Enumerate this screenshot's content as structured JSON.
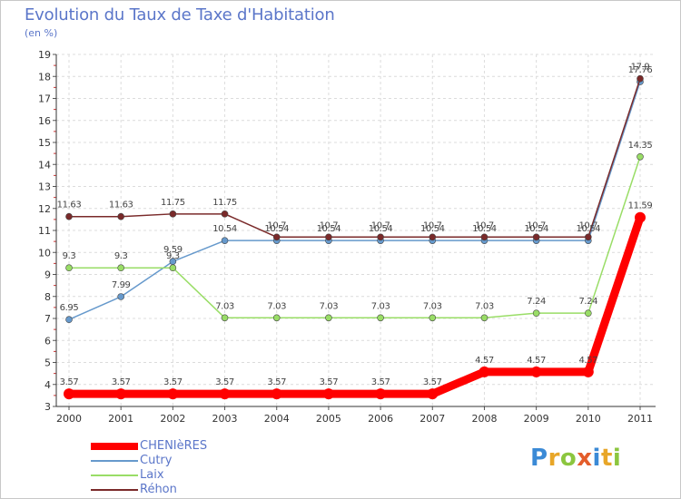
{
  "title": "Evolution du Taux de Taxe d'Habitation",
  "subtitle": "(en %)",
  "brand": {
    "letters": [
      "P",
      "r",
      "o",
      "x",
      "i",
      "t",
      "i"
    ]
  },
  "chart_data": {
    "type": "line",
    "title": "Evolution du Taux de Taxe d'Habitation",
    "ylabel": "(en %)",
    "xlabel": "",
    "ylim": [
      3,
      19
    ],
    "yticks": [
      "3",
      "4",
      "5",
      "6",
      "7",
      "8",
      "9",
      "10",
      "11",
      "12",
      "13",
      "14",
      "15",
      "16",
      "17",
      "18",
      "19"
    ],
    "categories": [
      "2000",
      "2001",
      "2002",
      "2003",
      "2004",
      "2005",
      "2006",
      "2007",
      "2008",
      "2009",
      "2010",
      "2011"
    ],
    "series": [
      {
        "name": "CHENIèRES",
        "color": "#ff0000",
        "values": [
          3.57,
          3.57,
          3.57,
          3.57,
          3.57,
          3.57,
          3.57,
          3.57,
          4.57,
          4.57,
          4.57,
          11.59
        ],
        "labels": [
          "3.57",
          "3.57",
          "3.57",
          "3.57",
          "3.57",
          "3.57",
          "3.57",
          "3.57",
          "4.57",
          "4.57",
          "4.57",
          "11.59"
        ]
      },
      {
        "name": "Cutry",
        "color": "#6699cc",
        "values": [
          6.95,
          7.99,
          9.59,
          10.54,
          10.54,
          10.54,
          10.54,
          10.54,
          10.54,
          10.54,
          10.54,
          17.76
        ],
        "labels": [
          "6.95",
          "7.99",
          "9.59",
          "10.54",
          "10.54",
          "10.54",
          "10.54",
          "10.54",
          "10.54",
          "10.54",
          "10.54",
          "17.76"
        ]
      },
      {
        "name": "Laix",
        "color": "#99dd66",
        "values": [
          9.3,
          9.3,
          9.3,
          7.03,
          7.03,
          7.03,
          7.03,
          7.03,
          7.03,
          7.24,
          7.24,
          14.35
        ],
        "labels": [
          "9.3",
          "9.3",
          "9.3",
          "7.03",
          "7.03",
          "7.03",
          "7.03",
          "7.03",
          "7.03",
          "7.24",
          "7.24",
          "14.35"
        ]
      },
      {
        "name": "Réhon",
        "color": "#7a2a2a",
        "values": [
          11.63,
          11.63,
          11.75,
          11.75,
          10.7,
          10.7,
          10.7,
          10.7,
          10.7,
          10.7,
          10.7,
          17.9
        ],
        "labels": [
          "11.63",
          "11.63",
          "11.75",
          "11.75",
          "10.7",
          "10.7",
          "10.7",
          "10.7",
          "10.7",
          "10.7",
          "10.7",
          "17.9"
        ]
      }
    ],
    "legend": [
      "CHENIèRES",
      "Cutry",
      "Laix",
      "Réhon"
    ]
  }
}
